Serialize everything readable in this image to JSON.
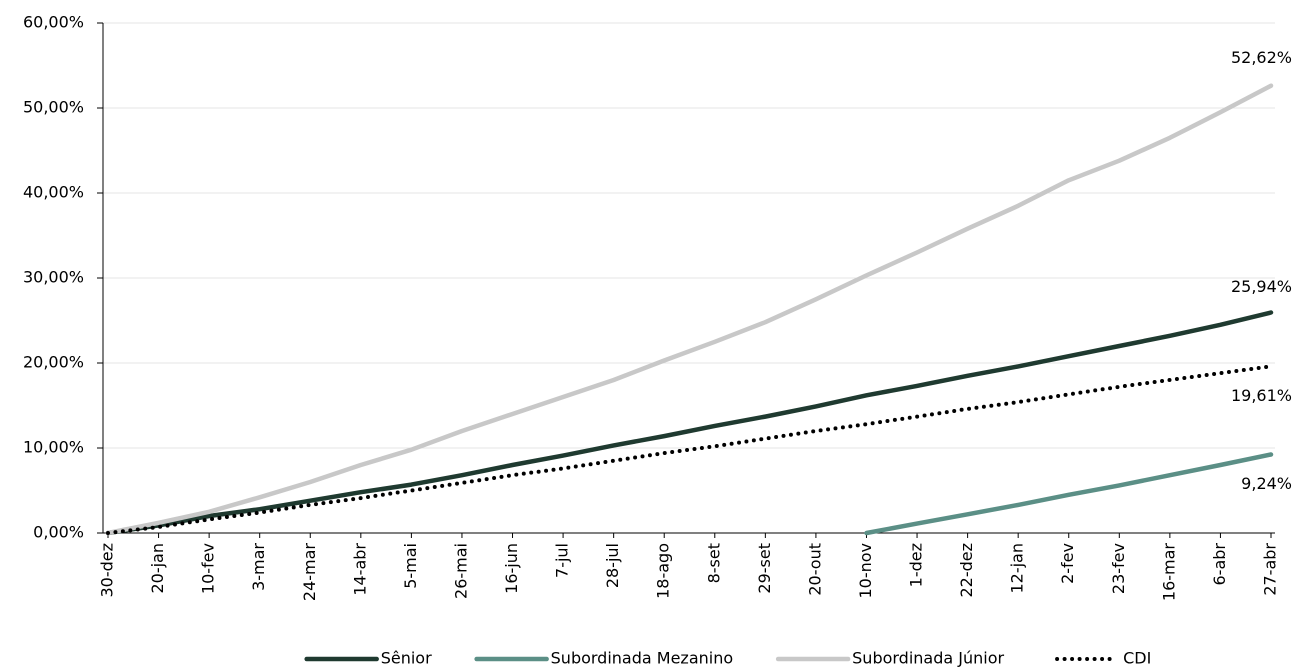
{
  "chart_data": {
    "type": "line",
    "categories": [
      "30-dez",
      "20-jan",
      "10-fev",
      "3-mar",
      "24-mar",
      "14-abr",
      "5-mai",
      "26-mai",
      "16-jun",
      "7-jul",
      "28-jul",
      "18-ago",
      "8-set",
      "29-set",
      "20-out",
      "10-nov",
      "1-dez",
      "22-dez",
      "12-jan",
      "2-fev",
      "23-fev",
      "16-mar",
      "6-abr",
      "27-abr"
    ],
    "series": [
      {
        "name": "Sênior",
        "color": "#1f3a30",
        "style": "solid",
        "values": [
          0,
          0.9,
          2.0,
          2.8,
          3.8,
          4.8,
          5.7,
          6.8,
          8.0,
          9.1,
          10.3,
          11.4,
          12.6,
          13.7,
          14.9,
          16.2,
          17.3,
          18.5,
          19.6,
          20.8,
          22.0,
          23.2,
          24.5,
          25.94
        ],
        "value_labels": [
          null,
          null,
          null,
          null,
          null,
          null,
          null,
          null,
          null,
          null,
          null,
          null,
          null,
          null,
          null,
          null,
          null,
          null,
          null,
          null,
          null,
          null,
          null,
          "25,94%"
        ]
      },
      {
        "name": "Subordinada Mezanino",
        "color": "#5b8f86",
        "style": "solid",
        "values": [
          null,
          null,
          null,
          null,
          null,
          null,
          null,
          null,
          null,
          null,
          null,
          null,
          null,
          null,
          null,
          0,
          1.1,
          2.2,
          3.3,
          4.5,
          5.6,
          6.8,
          8.0,
          9.24
        ],
        "value_labels": [
          null,
          null,
          null,
          null,
          null,
          null,
          null,
          null,
          null,
          null,
          null,
          null,
          null,
          null,
          null,
          null,
          null,
          null,
          null,
          null,
          null,
          null,
          null,
          "9,24%"
        ]
      },
      {
        "name": "Subordinada Júnior",
        "color": "#c8c8c8",
        "style": "solid",
        "values": [
          0,
          1.2,
          2.5,
          4.2,
          6.0,
          8.0,
          9.8,
          12.0,
          14.0,
          16.0,
          18.0,
          20.3,
          22.5,
          24.8,
          27.5,
          30.3,
          33.0,
          35.8,
          38.5,
          41.5,
          43.8,
          46.5,
          49.5,
          52.62
        ],
        "value_labels": [
          null,
          null,
          null,
          null,
          null,
          null,
          null,
          null,
          null,
          null,
          null,
          null,
          null,
          null,
          null,
          null,
          null,
          null,
          null,
          null,
          null,
          null,
          null,
          "52,62%"
        ]
      },
      {
        "name": "CDI",
        "color": "#000000",
        "style": "dotted",
        "values": [
          0,
          0.7,
          1.6,
          2.4,
          3.3,
          4.1,
          5.0,
          5.9,
          6.8,
          7.6,
          8.5,
          9.4,
          10.2,
          11.1,
          12.0,
          12.8,
          13.7,
          14.6,
          15.4,
          16.3,
          17.2,
          18.0,
          18.8,
          19.61
        ],
        "value_labels": [
          null,
          null,
          null,
          null,
          null,
          null,
          null,
          null,
          null,
          null,
          null,
          null,
          null,
          null,
          null,
          null,
          null,
          null,
          null,
          null,
          null,
          null,
          null,
          "19,61%"
        ]
      }
    ],
    "ylim": [
      0,
      60
    ],
    "yticks": [
      {
        "value": 0,
        "label": "0,00%"
      },
      {
        "value": 10,
        "label": "10,00%"
      },
      {
        "value": 20,
        "label": "20,00%"
      },
      {
        "value": 30,
        "label": "30,00%"
      },
      {
        "value": 40,
        "label": "40,00%"
      },
      {
        "value": 50,
        "label": "50,00%"
      },
      {
        "value": 60,
        "label": "60,00%"
      }
    ],
    "grid": true,
    "legend": "bottom"
  }
}
